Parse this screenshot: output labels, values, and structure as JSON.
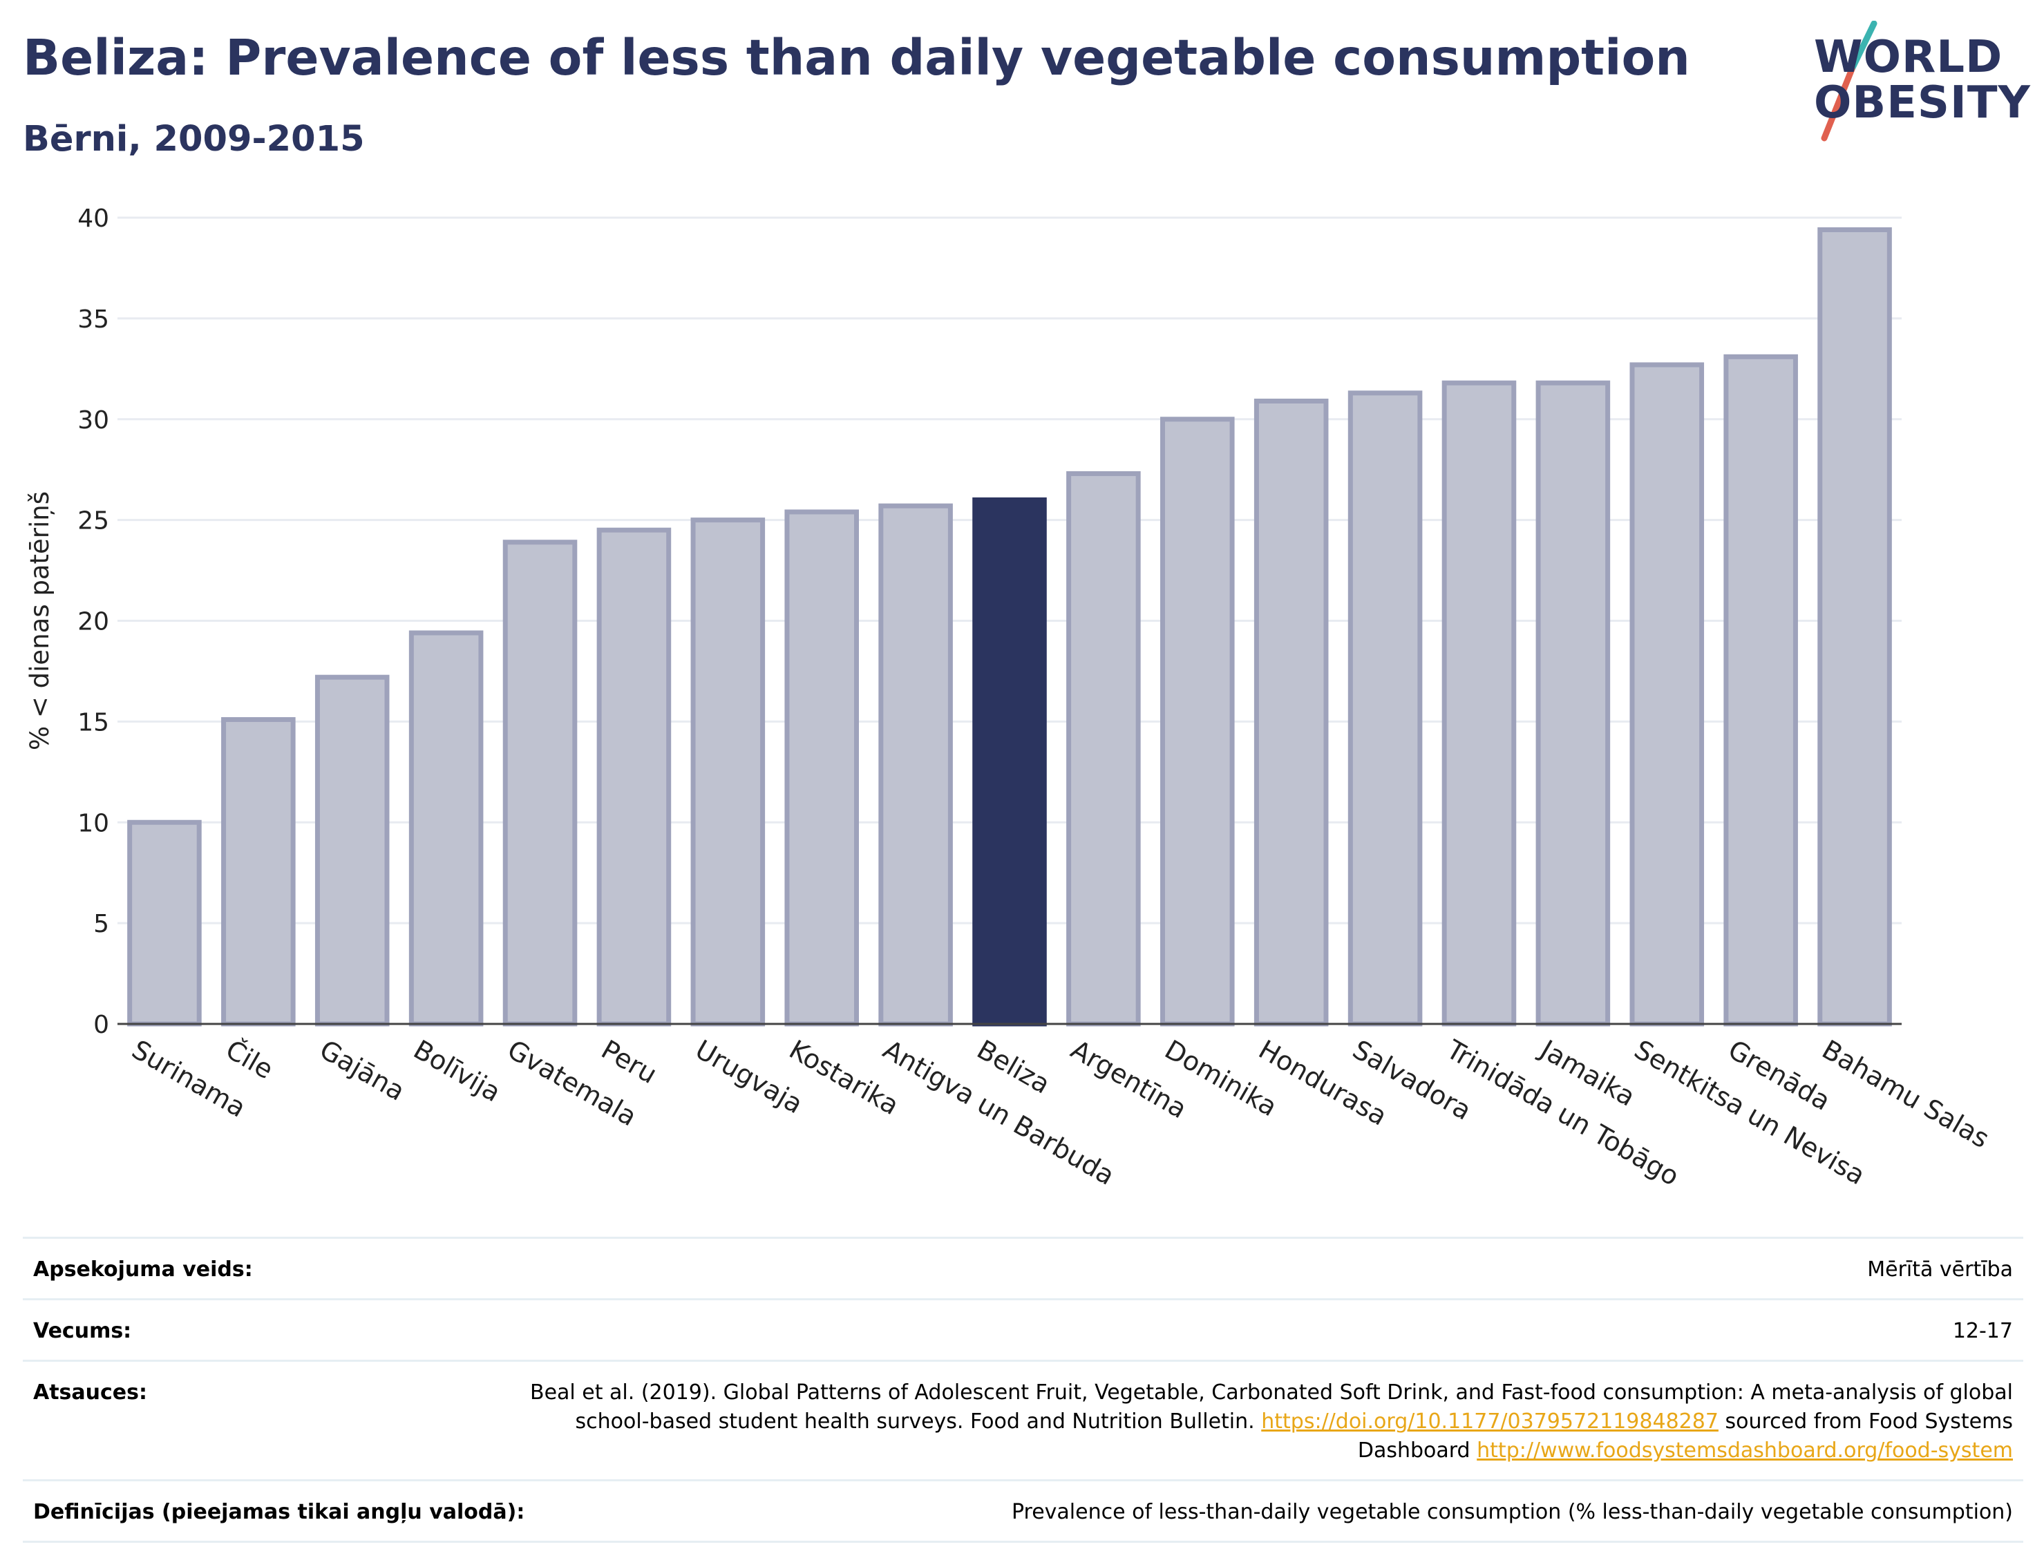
{
  "title": "Beliza: Prevalence of less than daily vegetable consumption",
  "subtitle": "Bērni, 2009-2015",
  "logo": {
    "line1": "WORLD",
    "line2": "OBESITY"
  },
  "colors": {
    "title": "#2b345f",
    "bar": "#bfc2d0",
    "bar_border": "#9ea2bb",
    "highlight": "#2b345f",
    "grid": "#e8ebf1",
    "link": "#e8a617",
    "logo_teal": "#3bb3b0",
    "logo_red": "#e0604f"
  },
  "chart_data": {
    "type": "bar",
    "ylabel": "% < dienas patēriņš",
    "xlabel": "",
    "ylim": [
      0,
      40
    ],
    "yticks": [
      0,
      5,
      10,
      15,
      20,
      25,
      30,
      35,
      40
    ],
    "grid": true,
    "highlight": "Beliza",
    "categories": [
      "Surinama",
      "Čile",
      "Gajāna",
      "Bolīvija",
      "Gvatemala",
      "Peru",
      "Urugvaja",
      "Kostarika",
      "Antigva un Barbuda",
      "Beliza",
      "Argentīna",
      "Dominika",
      "Hondurasa",
      "Salvadora",
      "Trinidāda un Tobāgo",
      "Jamaika",
      "Sentkitsa un Nevisa",
      "Grenāda",
      "Bahamu Salas"
    ],
    "values": [
      10.0,
      15.1,
      17.2,
      19.4,
      23.9,
      24.5,
      25.0,
      25.4,
      25.7,
      26.0,
      27.3,
      30.0,
      30.9,
      31.3,
      31.8,
      31.8,
      32.7,
      33.1,
      39.4
    ]
  },
  "meta": {
    "survey_label": "Apsekojuma veids:",
    "survey_value": "Mērītā vērtība",
    "age_label": "Vecums:",
    "age_value": "12-17",
    "refs_label": "Atsauces:",
    "refs_text1": "Beal et al. (2019). Global Patterns of Adolescent Fruit, Vegetable, Carbonated Soft Drink, and Fast-food consumption: A meta-analysis of global school-based student health surveys. Food and Nutrition Bulletin.",
    "refs_link1": "https://doi.org/10.1177/0379572119848287",
    "refs_text2": "sourced from Food Systems Dashboard",
    "refs_link2": "http://www.foodsystemsdashboard.org/food-system",
    "defs_label": "Definīcijas (pieejamas tikai angļu valodā):",
    "defs_value": "Prevalence of less-than-daily vegetable consumption (% less-than-daily vegetable consumption)"
  }
}
